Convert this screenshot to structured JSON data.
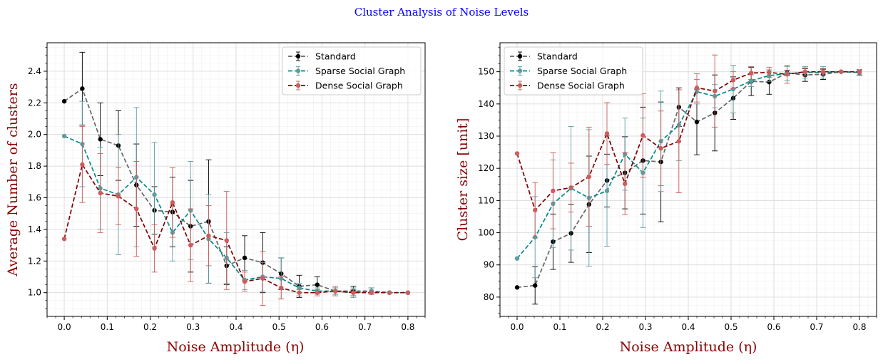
{
  "figure": {
    "title": "Cluster Analysis of Noise Levels",
    "title_color": "#0000ff",
    "label_color": "#8b0000"
  },
  "chart_data": [
    {
      "type": "line",
      "xlabel": "Noise Amplitude (η)",
      "ylabel": "Average Number of clusters",
      "xlim": [
        -0.04,
        0.84
      ],
      "ylim": [
        0.85,
        2.58
      ],
      "xticks": [
        "0.0",
        "0.1",
        "0.2",
        "0.3",
        "0.4",
        "0.5",
        "0.6",
        "0.7",
        "0.8"
      ],
      "yticks": [
        "1.0",
        "1.2",
        "1.4",
        "1.6",
        "1.8",
        "2.0",
        "2.2",
        "2.4"
      ],
      "grid": true,
      "legend_position": "top-right",
      "x": [
        0.0,
        0.042,
        0.084,
        0.126,
        0.168,
        0.21,
        0.252,
        0.294,
        0.336,
        0.378,
        0.42,
        0.462,
        0.505,
        0.547,
        0.589,
        0.631,
        0.673,
        0.715,
        0.757,
        0.8
      ],
      "series": [
        {
          "name": "Standard",
          "color": "#000000",
          "line_color": "#666666",
          "values": [
            2.21,
            2.29,
            1.97,
            1.93,
            1.68,
            1.52,
            1.51,
            1.42,
            1.45,
            1.17,
            1.22,
            1.19,
            1.12,
            1.04,
            1.05,
            1.01,
            1.01,
            1.01,
            1.0,
            1.0
          ],
          "errors": [
            0.0,
            0.23,
            0.23,
            0.22,
            0.26,
            0.15,
            0.22,
            0.29,
            0.39,
            0.12,
            0.14,
            0.19,
            0.1,
            0.07,
            0.05,
            0.02,
            0.03,
            0.02,
            0.0,
            0.0
          ]
        },
        {
          "name": "Sparse Social Graph",
          "color": "#5f9ea0",
          "line_color": "#008b8b",
          "values": [
            1.99,
            1.94,
            1.66,
            1.62,
            1.73,
            1.62,
            1.38,
            1.52,
            1.34,
            1.22,
            1.08,
            1.1,
            1.09,
            1.03,
            1.01,
            1.01,
            1.0,
            1.01,
            1.0,
            1.0
          ],
          "errors": [
            0.0,
            0.27,
            0.26,
            0.38,
            0.44,
            0.33,
            0.18,
            0.31,
            0.28,
            0.16,
            0.06,
            0.09,
            0.13,
            0.03,
            0.02,
            0.02,
            0.03,
            0.02,
            0.0,
            0.0
          ]
        },
        {
          "name": "Dense Social Graph",
          "color": "#cd5c5c",
          "line_color": "#800000",
          "values": [
            1.34,
            1.81,
            1.63,
            1.61,
            1.53,
            1.28,
            1.57,
            1.3,
            1.36,
            1.33,
            1.07,
            1.09,
            1.03,
            1.0,
            1.0,
            1.01,
            1.0,
            1.0,
            1.0,
            1.0
          ],
          "errors": [
            0.0,
            0.24,
            0.25,
            0.18,
            0.3,
            0.15,
            0.22,
            0.23,
            0.19,
            0.31,
            0.06,
            0.17,
            0.07,
            0.02,
            0.02,
            0.03,
            0.02,
            0.01,
            0.0,
            0.0
          ]
        }
      ]
    },
    {
      "type": "line",
      "xlabel": "Noise Amplitude (η)",
      "ylabel": "Cluster size [unit]",
      "xlim": [
        -0.04,
        0.84
      ],
      "ylim": [
        74,
        159
      ],
      "xticks": [
        "0.0",
        "0.1",
        "0.2",
        "0.3",
        "0.4",
        "0.5",
        "0.6",
        "0.7",
        "0.8"
      ],
      "yticks": [
        "80",
        "90",
        "100",
        "110",
        "120",
        "130",
        "140",
        "150"
      ],
      "grid": true,
      "legend_position": "top-left",
      "x": [
        0.0,
        0.042,
        0.084,
        0.126,
        0.168,
        0.21,
        0.252,
        0.294,
        0.336,
        0.378,
        0.42,
        0.462,
        0.505,
        0.547,
        0.589,
        0.631,
        0.673,
        0.715,
        0.757,
        0.8
      ],
      "series": [
        {
          "name": "Standard",
          "color": "#000000",
          "line_color": "#666666",
          "values": [
            83.0,
            83.6,
            97.2,
            99.8,
            108.8,
            116.2,
            118.6,
            122.4,
            122.0,
            139.0,
            134.4,
            137.2,
            141.8,
            147.0,
            146.8,
            149.6,
            149.0,
            149.2,
            150.0,
            149.8
          ],
          "errors": [
            0.0,
            5.8,
            8.6,
            9.0,
            15.0,
            8.2,
            11.2,
            16.6,
            18.6,
            6.0,
            10.2,
            11.8,
            6.6,
            4.4,
            3.8,
            0.8,
            2.0,
            1.6,
            0.0,
            0.8
          ]
        },
        {
          "name": "Sparse Social Graph",
          "color": "#5f9ea0",
          "line_color": "#008b8b",
          "values": [
            92.0,
            98.6,
            109.0,
            113.8,
            110.8,
            113.0,
            124.4,
            118.6,
            128.4,
            133.4,
            143.8,
            142.4,
            144.6,
            147.2,
            148.8,
            149.4,
            149.8,
            149.8,
            150.0,
            149.8
          ],
          "errors": [
            0.0,
            12.6,
            13.6,
            19.2,
            21.2,
            17.2,
            11.2,
            17.0,
            15.6,
            11.0,
            3.8,
            3.6,
            7.4,
            1.8,
            1.8,
            2.2,
            1.8,
            1.8,
            0.0,
            0.0
          ]
        },
        {
          "name": "Dense Social Graph",
          "color": "#cd5c5c",
          "line_color": "#800000",
          "values": [
            124.6,
            107.0,
            113.0,
            114.0,
            117.4,
            130.8,
            115.2,
            130.2,
            126.2,
            128.4,
            145.0,
            144.0,
            147.4,
            149.6,
            149.8,
            149.2,
            150.0,
            150.0,
            150.0,
            150.0
          ],
          "errors": [
            0.0,
            8.6,
            11.8,
            7.6,
            15.4,
            9.6,
            9.6,
            13.0,
            11.6,
            16.0,
            4.4,
            11.2,
            2.6,
            2.0,
            1.6,
            2.8,
            1.2,
            1.0,
            0.0,
            0.0
          ]
        }
      ]
    }
  ]
}
